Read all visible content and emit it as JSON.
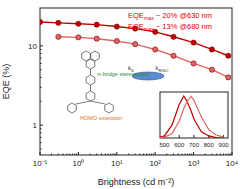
{
  "chart_data": [
    {
      "type": "line",
      "log": true,
      "x_label": "Brightness (cd m⁻²)",
      "y_label": "EQE (%)",
      "xlim": [
        0.1,
        10000
      ],
      "ylim": [
        0.42,
        30
      ],
      "xticks": [
        {
          "value": 0.1,
          "label": "10⁻¹"
        },
        {
          "value": 1,
          "label": "10⁰"
        },
        {
          "value": 10,
          "label": "10¹"
        },
        {
          "value": 100,
          "label": "10²"
        },
        {
          "value": 1000,
          "label": "10³"
        },
        {
          "value": 10000,
          "label": "10⁴"
        }
      ],
      "yticks": [
        1,
        10
      ],
      "marker": "circle",
      "x": [
        0.1,
        0.3,
        1,
        3,
        10,
        30,
        100,
        300,
        1000,
        3000,
        8000
      ],
      "series": [
        {
          "name": "630 nm",
          "color": "#c00000",
          "values": [
            20,
            19.5,
            19,
            18.5,
            17.5,
            16.5,
            15,
            13,
            11,
            9,
            7.5
          ]
        },
        {
          "name": "680 nm",
          "color": "#e06666",
          "values": [
            null,
            13,
            12.8,
            12.3,
            11.5,
            10.5,
            9,
            7.5,
            6,
            5,
            4
          ]
        }
      ],
      "annotations": [
        {
          "text": "EQE",
          "sub": "max",
          "rest": " ~ 20% @630 nm",
          "color": "#e00000"
        },
        {
          "text": "EQE",
          "sub": "max",
          "rest": " ~ 13% @680 nm",
          "color": "#e00000"
        },
        {
          "text": "π-bridge stereoscope",
          "color": "#2e8b3a"
        },
        {
          "text": "HOMO extension",
          "color": "#e07020"
        },
        {
          "text": "k",
          "sub": "S",
          "color": "#333333"
        },
        {
          "text": "k",
          "sub": "RISC",
          "color": "#333333"
        }
      ]
    },
    {
      "type": "line",
      "tick_labels": "x",
      "xlim": [
        470,
        930
      ],
      "ylim": [
        0,
        1.1
      ],
      "xticks": [
        500,
        600,
        700,
        800,
        900
      ],
      "x": [
        450,
        500,
        550,
        600,
        630,
        650,
        680,
        700,
        750,
        800,
        850,
        900
      ],
      "series": [
        {
          "name": "630 nm",
          "color": "#c00000",
          "values": [
            0,
            0.05,
            0.3,
            0.8,
            1.0,
            0.9,
            0.65,
            0.45,
            0.15,
            0.05,
            0.01,
            0
          ]
        },
        {
          "name": "680 nm",
          "color": "#e06666",
          "values": [
            0,
            0.02,
            0.1,
            0.4,
            0.7,
            0.85,
            1.0,
            0.9,
            0.5,
            0.2,
            0.07,
            0.02
          ]
        }
      ]
    }
  ]
}
